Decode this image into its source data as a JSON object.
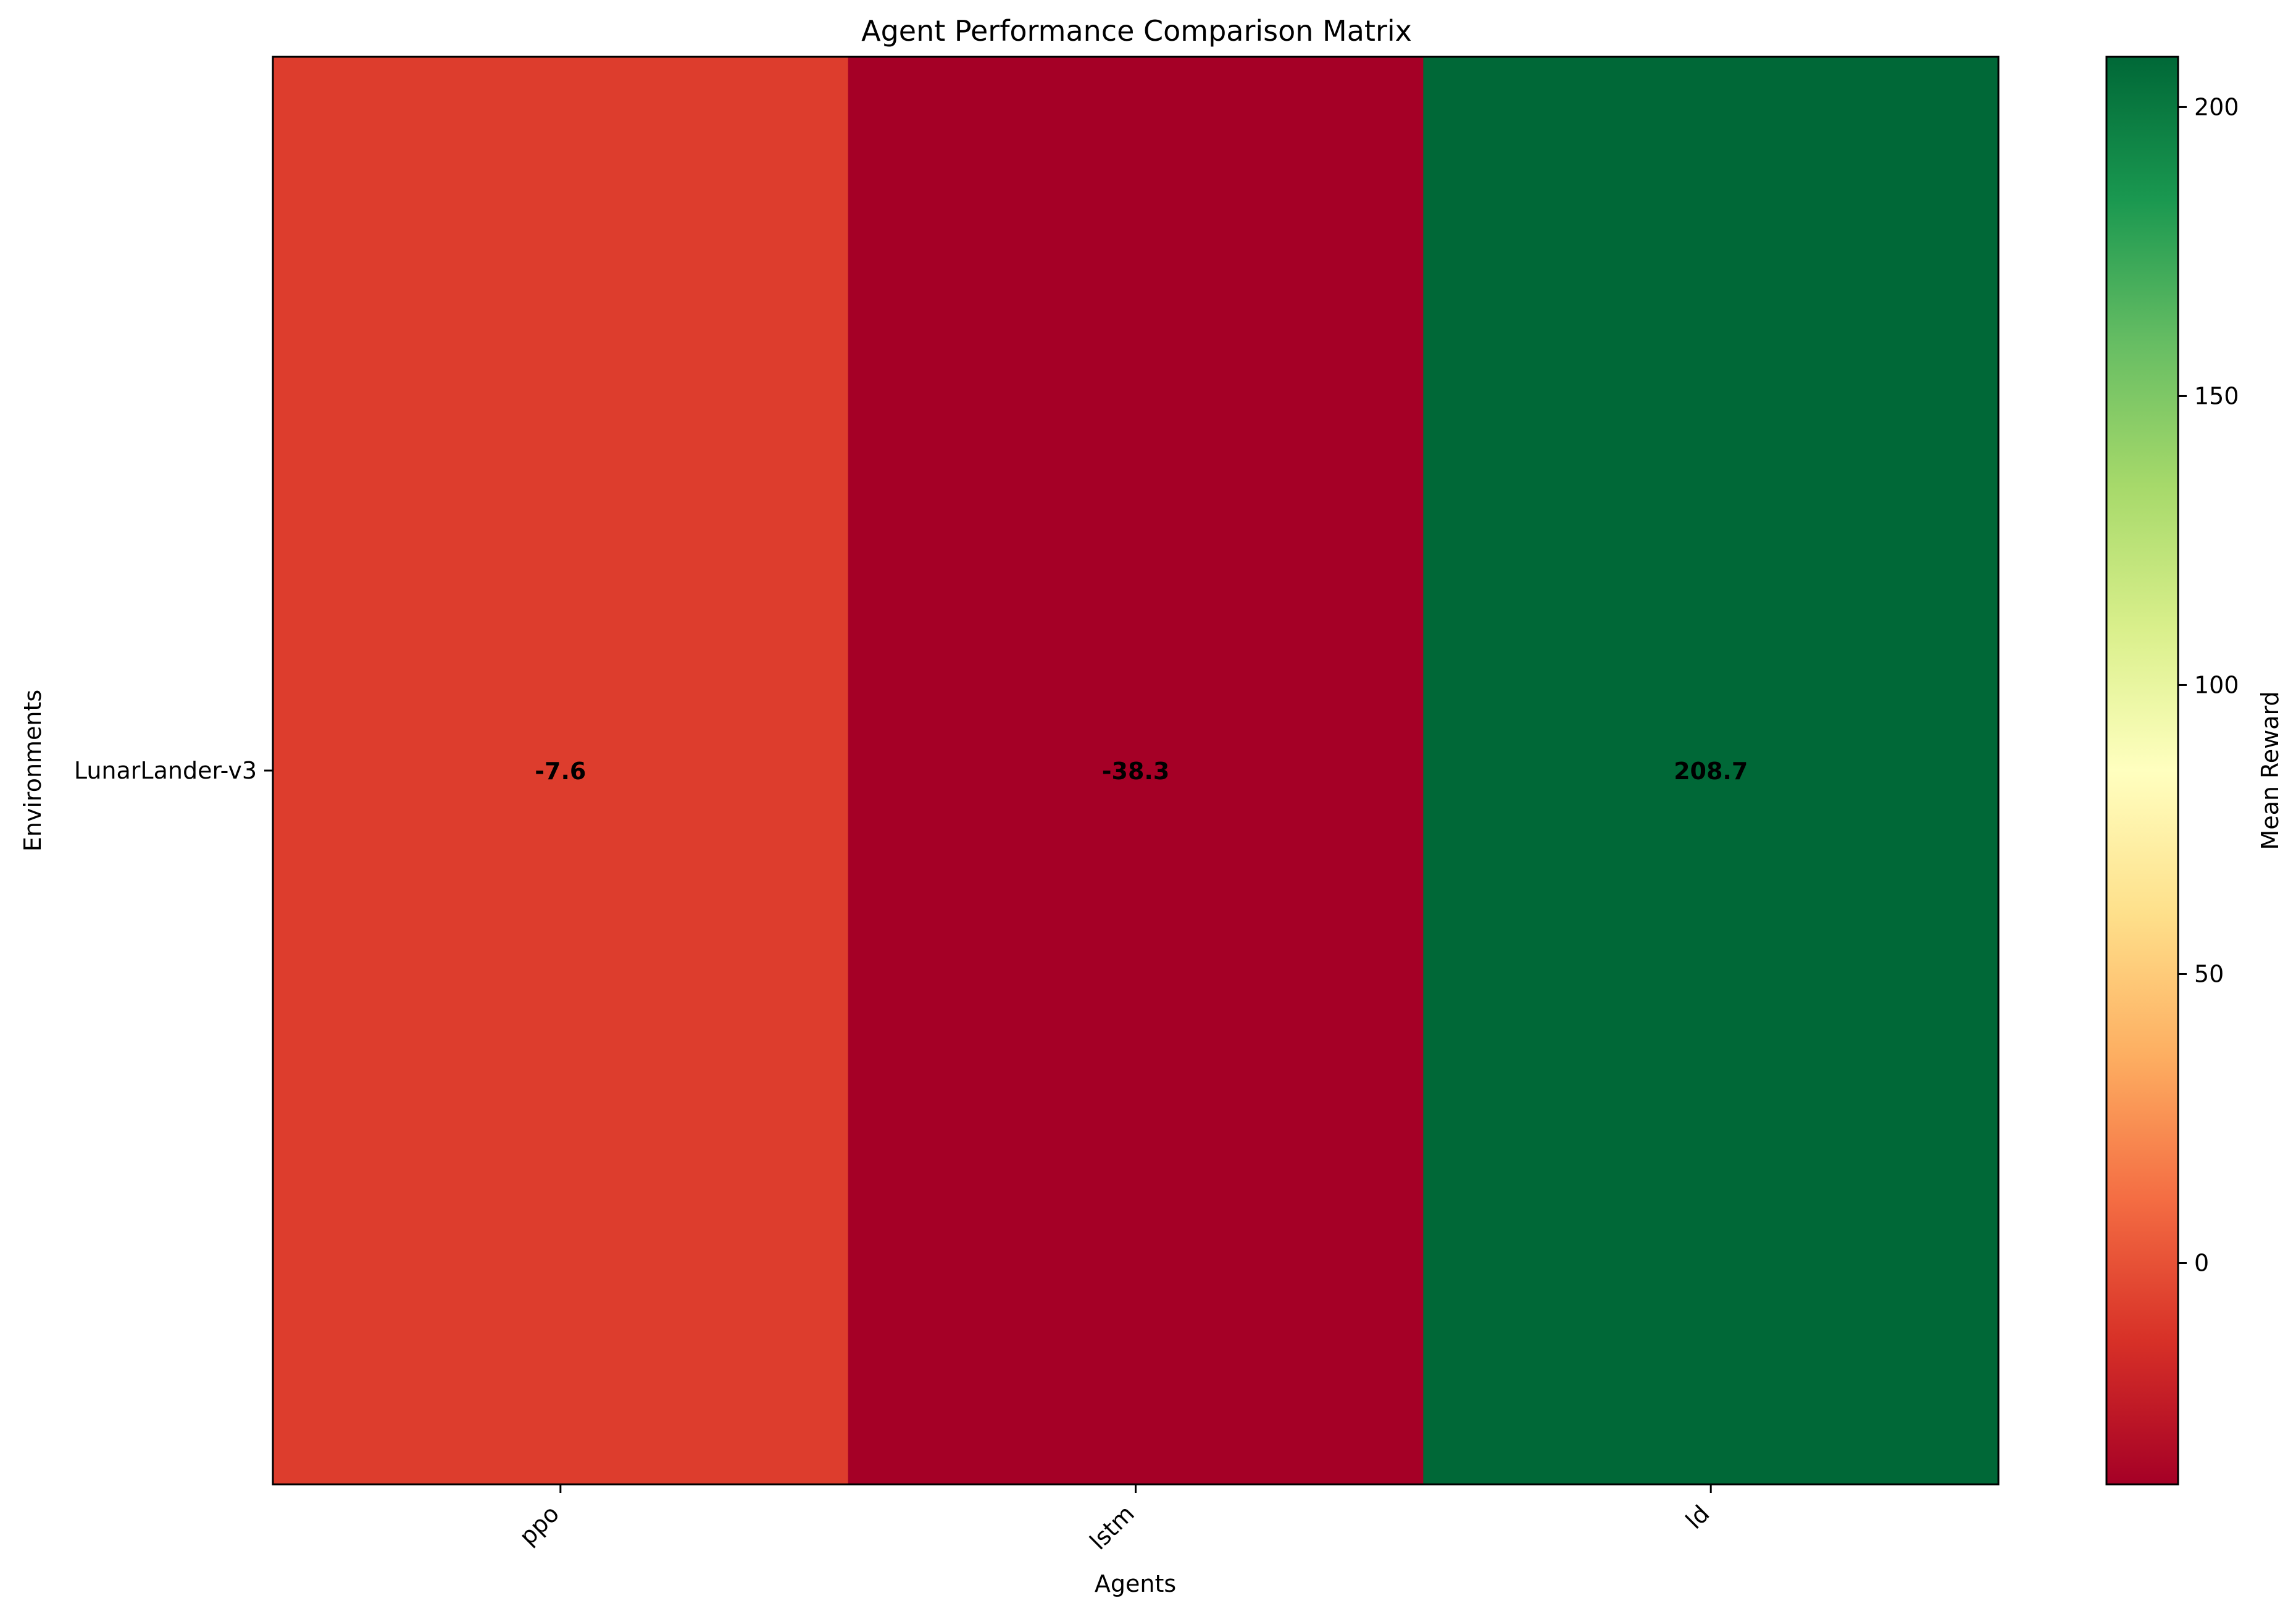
{
  "chart_data": {
    "type": "heatmap",
    "title": "Agent Performance Comparison Matrix",
    "xlabel": "Agents",
    "ylabel": "Environments",
    "x_categories": [
      "ppo",
      "lstm",
      "ld"
    ],
    "y_categories": [
      "LunarLander-v3"
    ],
    "values": [
      [
        -7.6,
        -38.3,
        208.7
      ]
    ],
    "value_labels": [
      [
        "-7.6",
        "-38.3",
        "208.7"
      ]
    ],
    "colormap": "RdYlGn",
    "colorbar": {
      "label": "Mean Reward",
      "range": [
        -38.3,
        208.7
      ],
      "ticks": [
        0,
        50,
        100,
        150,
        200
      ],
      "tick_labels": [
        "0",
        "50",
        "100",
        "150",
        "200"
      ]
    },
    "cell_colors": [
      "#dd3d2d",
      "#a50026",
      "#006837"
    ],
    "x_tick_rotation_deg": 45,
    "grid": false
  }
}
